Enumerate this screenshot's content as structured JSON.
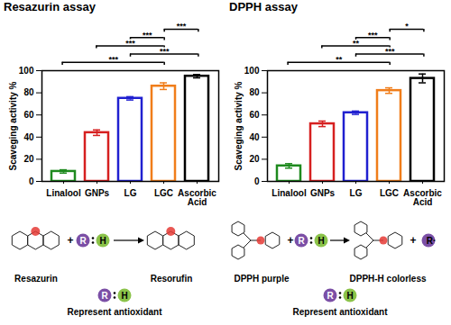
{
  "chart_data": [
    {
      "type": "bar",
      "title": "Resazurin assay",
      "categories": [
        "Linalool",
        "GNPs",
        "LG",
        "LGC",
        "Ascorbic Acid"
      ],
      "values": [
        9,
        44,
        75,
        86,
        95
      ],
      "errors": [
        1.5,
        2.5,
        1.5,
        3,
        1.5
      ],
      "colors": [
        "#1e8a1e",
        "#d62020",
        "#2020d0",
        "#f07d1a",
        "#000000"
      ],
      "ylabel": "Scaveging activity %",
      "ylim": [
        0,
        100
      ],
      "yticks": [
        0,
        20,
        40,
        60,
        80,
        100
      ],
      "grid": false,
      "comparisons": [
        {
          "from": "Linalool",
          "to": "LGC",
          "label": "***"
        },
        {
          "from": "LG",
          "to": "Ascorbic Acid",
          "label": "***"
        },
        {
          "from": "GNPs",
          "to": "LGC",
          "label": "***"
        },
        {
          "from": "LG",
          "to": "LGC",
          "label": "***"
        },
        {
          "from": "LGC",
          "to": "Ascorbic Acid",
          "label": "***"
        }
      ]
    },
    {
      "type": "bar",
      "title": "DPPH assay",
      "categories": [
        "Linalool",
        "GNPs",
        "LG",
        "LGC",
        "Ascorbic Acid"
      ],
      "values": [
        14,
        52,
        62,
        82,
        93
      ],
      "errors": [
        2,
        2.5,
        1.5,
        2.5,
        4
      ],
      "colors": [
        "#1e8a1e",
        "#d62020",
        "#2020d0",
        "#f07d1a",
        "#000000"
      ],
      "ylabel": "Scaveging activity %",
      "ylim": [
        0,
        100
      ],
      "yticks": [
        0,
        20,
        40,
        60,
        80,
        100
      ],
      "grid": false,
      "comparisons": [
        {
          "from": "Linalool",
          "to": "LGC",
          "label": "**"
        },
        {
          "from": "LG",
          "to": "Ascorbic Acid",
          "label": "***"
        },
        {
          "from": "GNPs",
          "to": "LGC",
          "label": "**"
        },
        {
          "from": "LG",
          "to": "LGC",
          "label": "***"
        },
        {
          "from": "LGC",
          "to": "Ascorbic Acid",
          "label": "*"
        }
      ]
    }
  ],
  "schemes": [
    {
      "reactant": "Resazurin",
      "product": "Resorufin",
      "note": "Represent antioxidant"
    },
    {
      "reactant": "DPPH purple",
      "product": "DPPH-H colorless",
      "note": "Represent antioxidant",
      "byproduct": "R·"
    }
  ],
  "antioxidant": {
    "radical": "R",
    "hydrogen": "H"
  },
  "plus": "+"
}
